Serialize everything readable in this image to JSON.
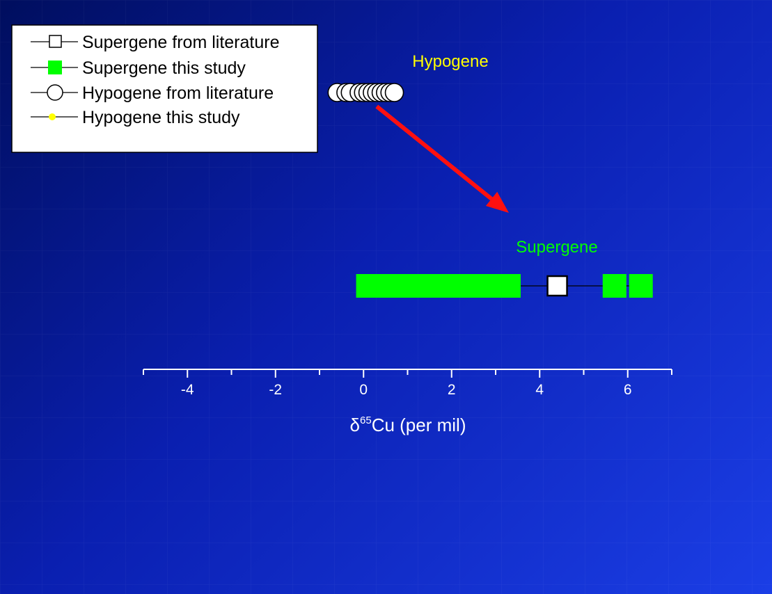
{
  "chart_data": {
    "type": "scatter",
    "title": "",
    "xlabel_prefix": "δ",
    "xlabel_superscript": "65",
    "xlabel_suffix": "Cu (per mil)",
    "ylabel": "",
    "xlim": [
      -5,
      7
    ],
    "x_ticks": [
      -4,
      -2,
      0,
      2,
      4,
      6
    ],
    "grid": true,
    "legend_position": "top-left",
    "annotations": [
      {
        "id": "hypogene",
        "text": "Hypogene",
        "color": "#ffff00"
      },
      {
        "id": "supergene",
        "text": "Supergene",
        "color": "#00ff00"
      }
    ],
    "arrow": {
      "color": "#ff1010",
      "from": [
        0.3,
        "hypogene"
      ],
      "to": [
        3.3,
        "supergene"
      ]
    },
    "series": [
      {
        "name": "Supergene from literature",
        "marker": "open-square",
        "color": "#ffffff",
        "row": "supergene",
        "values": [
          4.4
        ]
      },
      {
        "name": "Supergene this study",
        "marker": "filled-square",
        "color": "#00ff00",
        "row": "supergene",
        "values": [
          0.1,
          0.3,
          0.5,
          0.7,
          0.9,
          1.1,
          1.3,
          1.5,
          1.7,
          2.1,
          2.3,
          2.8,
          3.0,
          3.3,
          5.7,
          6.3
        ]
      },
      {
        "name": "Hypogene from literature",
        "marker": "open-circle",
        "color": "#ffffff",
        "row": "hypogene",
        "values": [
          -0.6,
          -0.4,
          -0.3,
          -0.1,
          0.0,
          0.1,
          0.2,
          0.3,
          0.4,
          0.5,
          0.6,
          0.7
        ]
      },
      {
        "name": "Hypogene this study",
        "marker": "filled-circle",
        "color": "#ffff00",
        "row": "hypogene",
        "values": []
      }
    ]
  }
}
